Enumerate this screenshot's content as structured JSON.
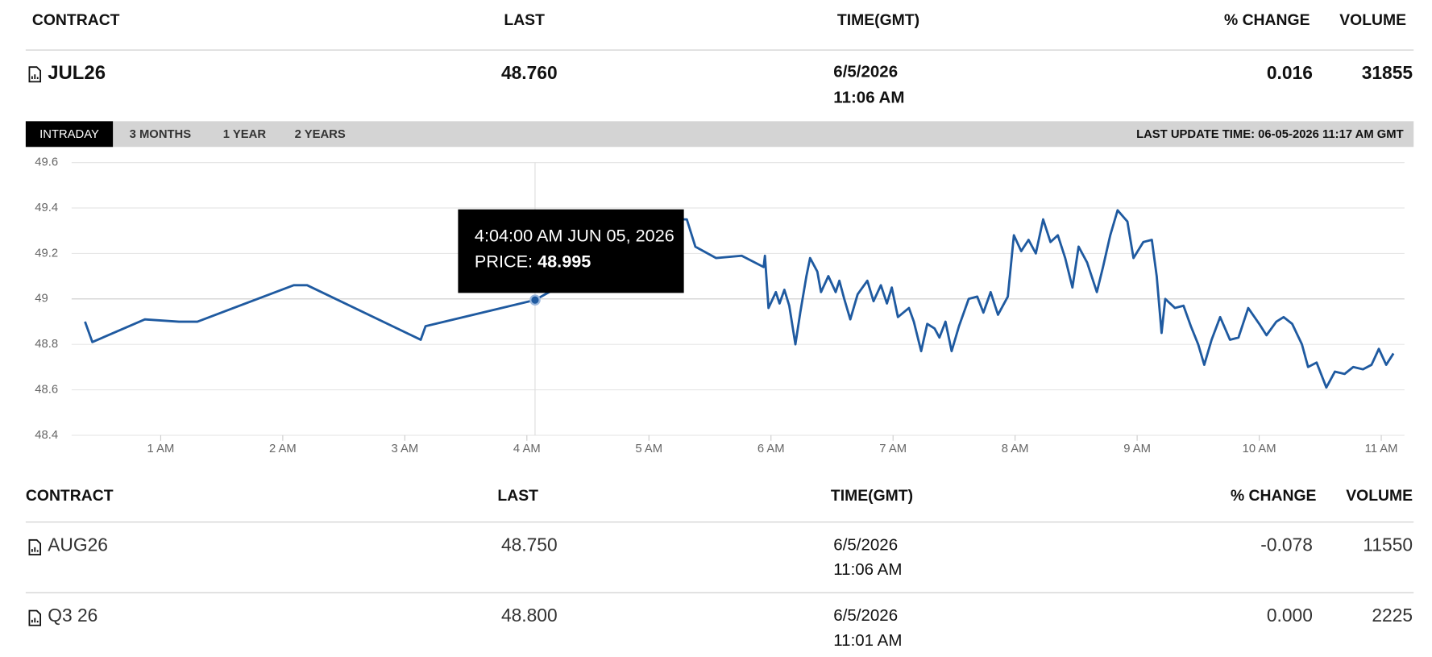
{
  "header": {
    "columns": [
      "CONTRACT",
      "LAST",
      "TIME(GMT)",
      "% CHANGE",
      "VOLUME"
    ]
  },
  "main_contract": {
    "contract": "JUL26",
    "last": "48.760",
    "date": "6/5/2026",
    "time": "11:06 AM",
    "change": "0.016",
    "volume": "31855"
  },
  "tabs": [
    "INTRADAY",
    "3 MONTHS",
    "1 YEAR",
    "2 YEARS"
  ],
  "last_update": "LAST UPDATE TIME: 06-05-2026 11:17 AM GMT",
  "chart_data": {
    "type": "line",
    "color": "#1f5aa0",
    "grid": true,
    "x": [
      0.38,
      0.44,
      0.87,
      1.15,
      1.3,
      2.09,
      2.2,
      3.13,
      3.17,
      4.067,
      5.25,
      5.31,
      5.38,
      5.55,
      5.76,
      5.94,
      5.95,
      5.98,
      6.04,
      6.07,
      6.11,
      6.15,
      6.2,
      6.24,
      6.29,
      6.32,
      6.38,
      6.41,
      6.47,
      6.53,
      6.56,
      6.6,
      6.65,
      6.71,
      6.79,
      6.84,
      6.9,
      6.95,
      6.99,
      7.04,
      7.13,
      7.17,
      7.23,
      7.28,
      7.34,
      7.38,
      7.43,
      7.48,
      7.54,
      7.62,
      7.69,
      7.74,
      7.8,
      7.86,
      7.94,
      7.99,
      8.05,
      8.11,
      8.17,
      8.23,
      8.29,
      8.35,
      8.41,
      8.47,
      8.52,
      8.59,
      8.67,
      8.72,
      8.78,
      8.84,
      8.92,
      8.97,
      9.05,
      9.12,
      9.16,
      9.2,
      9.23,
      9.31,
      9.38,
      9.44,
      9.5,
      9.55,
      9.61,
      9.68,
      9.76,
      9.83,
      9.91,
      10.0,
      10.06,
      10.14,
      10.2,
      10.27,
      10.35,
      10.4,
      10.47,
      10.55,
      10.62,
      10.7,
      10.77,
      10.85,
      10.92,
      10.98,
      11.04,
      11.1
    ],
    "values": [
      48.9,
      48.81,
      48.91,
      48.9,
      48.9,
      49.06,
      49.06,
      48.82,
      48.88,
      48.995,
      49.35,
      49.35,
      49.23,
      49.18,
      49.19,
      49.14,
      49.19,
      48.96,
      49.03,
      48.98,
      49.04,
      48.97,
      48.8,
      48.94,
      49.1,
      49.18,
      49.12,
      49.03,
      49.1,
      49.03,
      49.08,
      49.0,
      48.91,
      49.02,
      49.08,
      48.99,
      49.06,
      48.98,
      49.05,
      48.92,
      48.96,
      48.9,
      48.77,
      48.89,
      48.87,
      48.83,
      48.9,
      48.77,
      48.88,
      49.0,
      49.01,
      48.94,
      49.03,
      48.93,
      49.01,
      49.28,
      49.21,
      49.26,
      49.2,
      49.35,
      49.25,
      49.28,
      49.18,
      49.05,
      49.23,
      49.16,
      49.03,
      49.14,
      49.28,
      49.39,
      49.34,
      49.18,
      49.25,
      49.26,
      49.1,
      48.85,
      49.0,
      48.96,
      48.97,
      48.88,
      48.8,
      48.71,
      48.82,
      48.92,
      48.82,
      48.83,
      48.96,
      48.89,
      48.84,
      48.9,
      48.92,
      48.89,
      48.8,
      48.7,
      48.72,
      48.61,
      48.68,
      48.67,
      48.7,
      48.69,
      48.71,
      48.78,
      48.71,
      48.76
    ],
    "xlim": [
      0.27,
      11.19
    ],
    "ylim": [
      48.4,
      49.6
    ],
    "xticks": [
      {
        "value": 1,
        "label": "1 AM"
      },
      {
        "value": 2,
        "label": "2 AM"
      },
      {
        "value": 3,
        "label": "3 AM"
      },
      {
        "value": 4,
        "label": "4 AM"
      },
      {
        "value": 5,
        "label": "5 AM"
      },
      {
        "value": 6,
        "label": "6 AM"
      },
      {
        "value": 7,
        "label": "7 AM"
      },
      {
        "value": 8,
        "label": "8 AM"
      },
      {
        "value": 9,
        "label": "9 AM"
      },
      {
        "value": 10,
        "label": "10 AM"
      },
      {
        "value": 11,
        "label": "11 AM"
      }
    ],
    "yticks": [
      48.4,
      48.6,
      48.8,
      49,
      49.2,
      49.4,
      49.6
    ],
    "tooltip": {
      "time": "4:04:00 AM JUN 05, 2026",
      "label": "PRICE:",
      "value": 48.995
    }
  },
  "contracts_table": {
    "columns": [
      "CONTRACT",
      "LAST",
      "TIME(GMT)",
      "% CHANGE",
      "VOLUME"
    ],
    "rows": [
      [
        "AUG26",
        "48.750",
        "6/5/2026",
        "11:06 AM",
        "-0.078",
        "11550"
      ],
      [
        "Q3 26",
        "48.800",
        "6/5/2026",
        "11:01 AM",
        "0.000",
        "2225"
      ]
    ]
  }
}
